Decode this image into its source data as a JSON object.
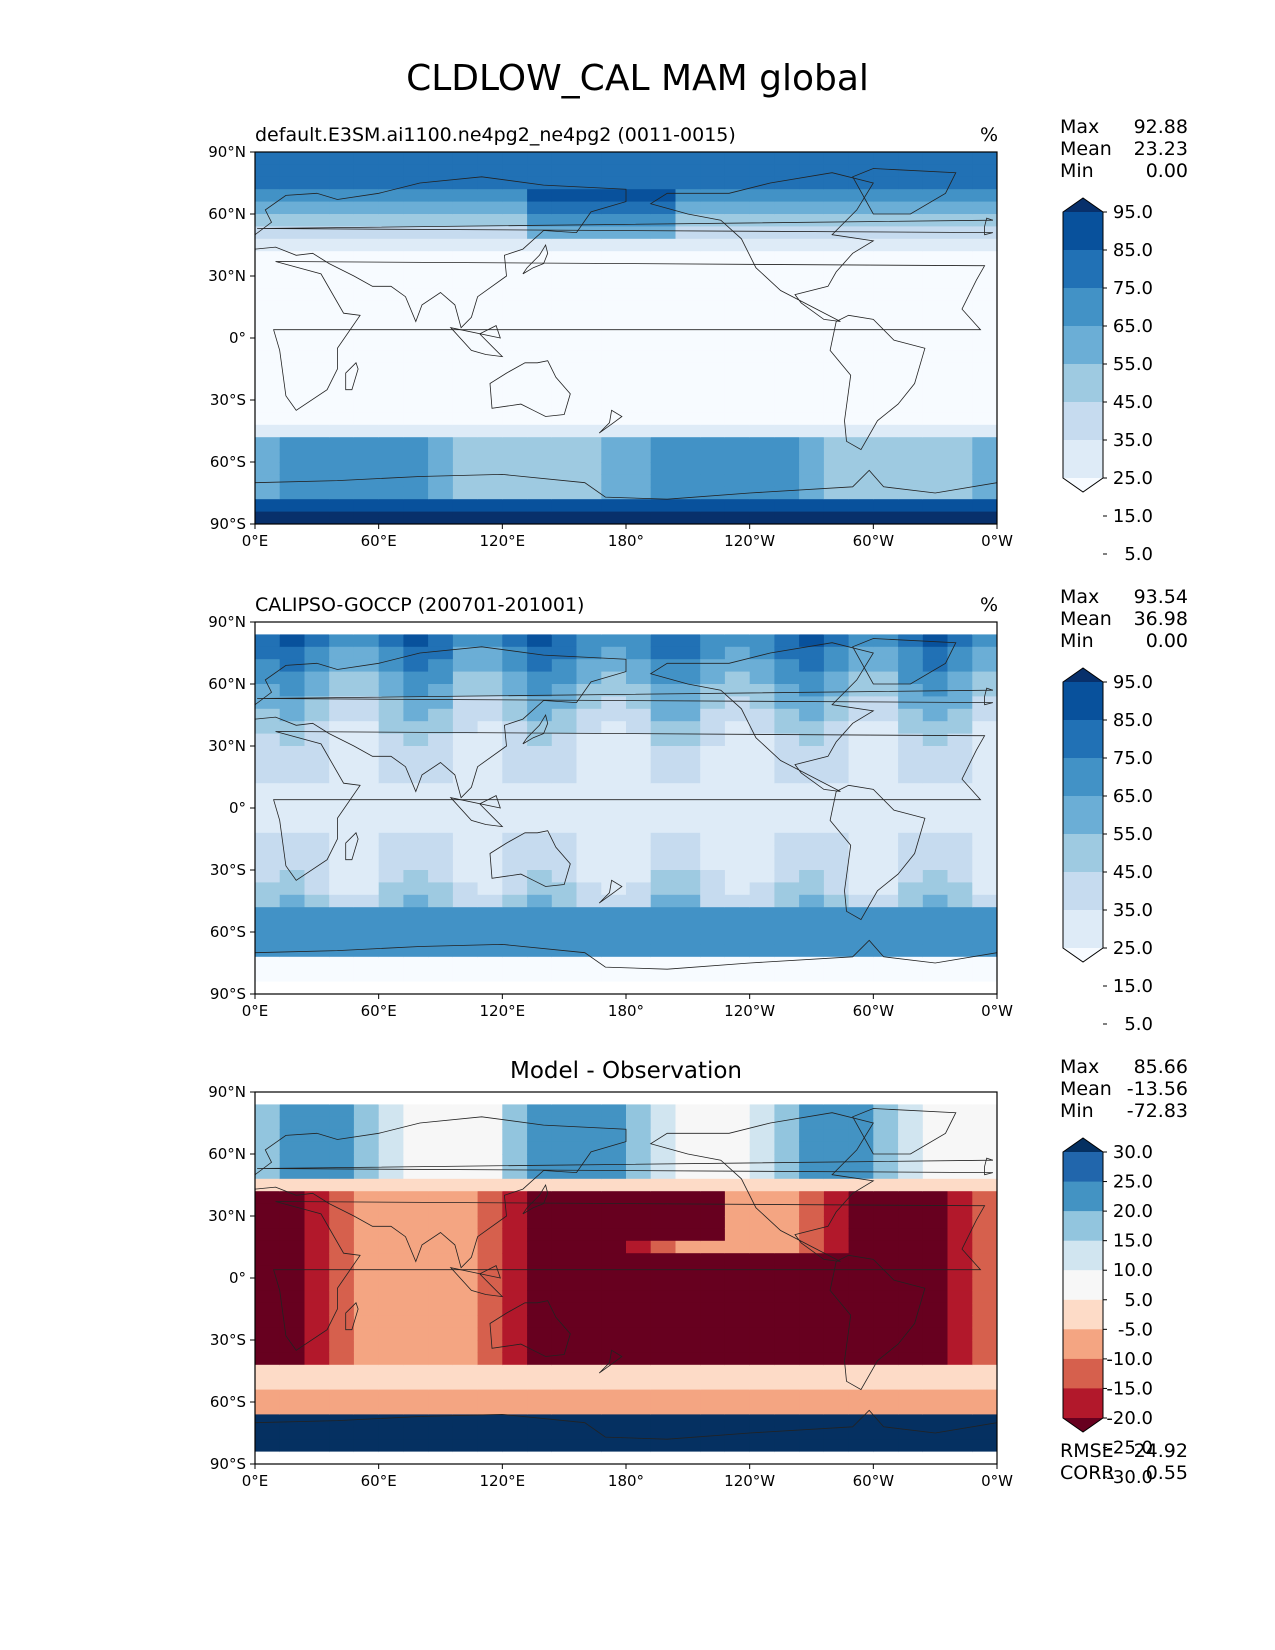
{
  "title": "CLDLOW_CAL MAM global",
  "lat_ticks": [
    "90°N",
    "60°N",
    "30°N",
    "0°",
    "30°S",
    "60°S",
    "90°S"
  ],
  "lon_ticks": [
    "0°E",
    "60°E",
    "120°E",
    "180°",
    "120°W",
    "60°W",
    "0°W"
  ],
  "panels": [
    {
      "id": "model",
      "title": "default.E3SM.ai1100.ne4pg2_ne4pg2 (0011-0015)",
      "title_style": "left",
      "units": "%",
      "stats": [
        {
          "label": "Max",
          "value": "92.88"
        },
        {
          "label": "Mean",
          "value": "23.23"
        },
        {
          "label": "Min",
          "value": "0.00"
        }
      ],
      "colorbar": {
        "labels": [
          "95.0",
          "85.0",
          "75.0",
          "65.0",
          "55.0",
          "45.0",
          "35.0",
          "25.0",
          "15.0",
          "5.0"
        ],
        "colors": [
          "#08306b",
          "#08519c",
          "#2171b5",
          "#4292c6",
          "#6baed6",
          "#9ecae1",
          "#c6dbef",
          "#deebf7",
          "#f7fbff"
        ]
      }
    },
    {
      "id": "obs",
      "title": "CALIPSO-GOCCP (200701-201001)",
      "title_style": "left",
      "units": "%",
      "stats": [
        {
          "label": "Max",
          "value": "93.54"
        },
        {
          "label": "Mean",
          "value": "36.98"
        },
        {
          "label": "Min",
          "value": "0.00"
        }
      ],
      "colorbar": {
        "labels": [
          "95.0",
          "85.0",
          "75.0",
          "65.0",
          "55.0",
          "45.0",
          "35.0",
          "25.0",
          "15.0",
          "5.0"
        ],
        "colors": [
          "#08306b",
          "#08519c",
          "#2171b5",
          "#4292c6",
          "#6baed6",
          "#9ecae1",
          "#c6dbef",
          "#deebf7",
          "#f7fbff"
        ]
      }
    },
    {
      "id": "diff",
      "title": "Model - Observation",
      "title_style": "center",
      "units": "",
      "stats": [
        {
          "label": "Max",
          "value": "85.66"
        },
        {
          "label": "Mean",
          "value": "-13.56"
        },
        {
          "label": "Min",
          "value": "-72.83"
        }
      ],
      "colorbar": {
        "labels": [
          "30.0",
          "25.0",
          "20.0",
          "15.0",
          "10.0",
          "5.0",
          "-5.0",
          "-10.0",
          "-15.0",
          "-20.0",
          "-25.0",
          "-30.0"
        ],
        "colors": [
          "#053061",
          "#2166ac",
          "#4393c3",
          "#92c5de",
          "#d1e5f0",
          "#f7f7f7",
          "#fddbc7",
          "#f4a582",
          "#d6604d",
          "#b2182b",
          "#67001f"
        ]
      },
      "metrics": [
        {
          "label": "RMSE",
          "value": "24.92"
        },
        {
          "label": "CORR",
          "value": "0.55"
        }
      ]
    }
  ]
}
